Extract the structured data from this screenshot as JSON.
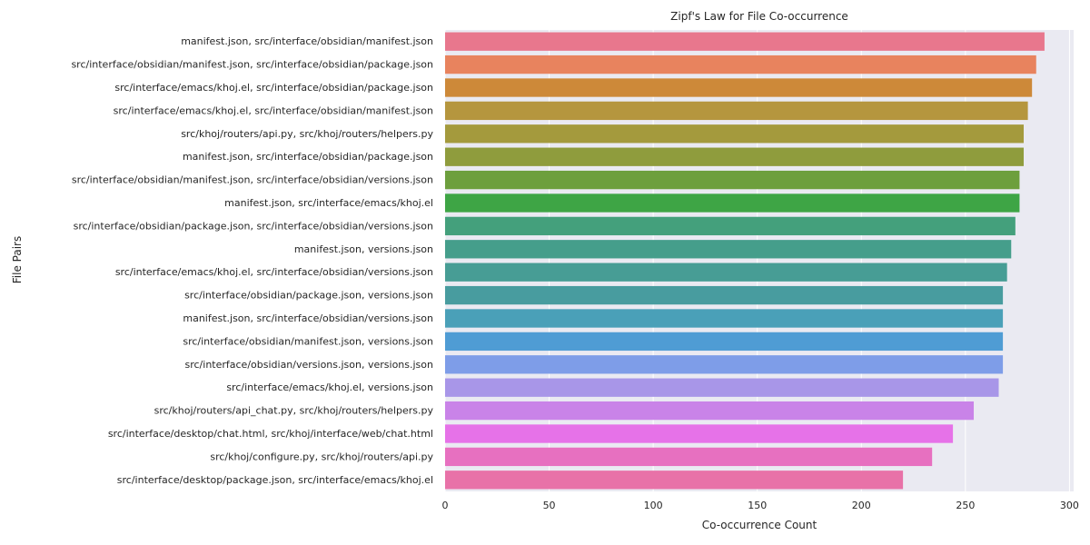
{
  "chart_data": {
    "type": "bar",
    "orientation": "horizontal",
    "title": "Zipf's Law for File Co-occurrence",
    "xlabel": "Co-occurrence Count",
    "ylabel": "File Pairs",
    "xlim": [
      0,
      302
    ],
    "xticks": [
      0,
      50,
      100,
      150,
      200,
      250,
      300
    ],
    "grid": true,
    "categories": [
      "manifest.json, src/interface/obsidian/manifest.json",
      "src/interface/obsidian/manifest.json, src/interface/obsidian/package.json",
      "src/interface/emacs/khoj.el, src/interface/obsidian/package.json",
      "src/interface/emacs/khoj.el, src/interface/obsidian/manifest.json",
      "src/khoj/routers/api.py, src/khoj/routers/helpers.py",
      "manifest.json, src/interface/obsidian/package.json",
      "src/interface/obsidian/manifest.json, src/interface/obsidian/versions.json",
      "manifest.json, src/interface/emacs/khoj.el",
      "src/interface/obsidian/package.json, src/interface/obsidian/versions.json",
      "manifest.json, versions.json",
      "src/interface/emacs/khoj.el, src/interface/obsidian/versions.json",
      "src/interface/obsidian/package.json, versions.json",
      "manifest.json, src/interface/obsidian/versions.json",
      "src/interface/obsidian/manifest.json, versions.json",
      "src/interface/obsidian/versions.json, versions.json",
      "src/interface/emacs/khoj.el, versions.json",
      "src/khoj/routers/api_chat.py, src/khoj/routers/helpers.py",
      "src/interface/desktop/chat.html, src/khoj/interface/web/chat.html",
      "src/khoj/configure.py, src/khoj/routers/api.py",
      "src/interface/desktop/package.json, src/interface/emacs/khoj.el"
    ],
    "values": [
      288,
      284,
      282,
      280,
      278,
      278,
      276,
      276,
      274,
      272,
      270,
      268,
      268,
      268,
      268,
      266,
      254,
      244,
      234,
      220
    ],
    "colors": [
      "#e8778d",
      "#e8835e",
      "#cd8939",
      "#b5963e",
      "#a49a3d",
      "#8f9c3d",
      "#6d9f3d",
      "#3ea545",
      "#44a07c",
      "#459e8b",
      "#479d95",
      "#489c9f",
      "#4aa0b8",
      "#4f9cd4",
      "#7e9de8",
      "#a896e8",
      "#c983e8",
      "#e672e8",
      "#e770c0",
      "#e872a8"
    ]
  }
}
